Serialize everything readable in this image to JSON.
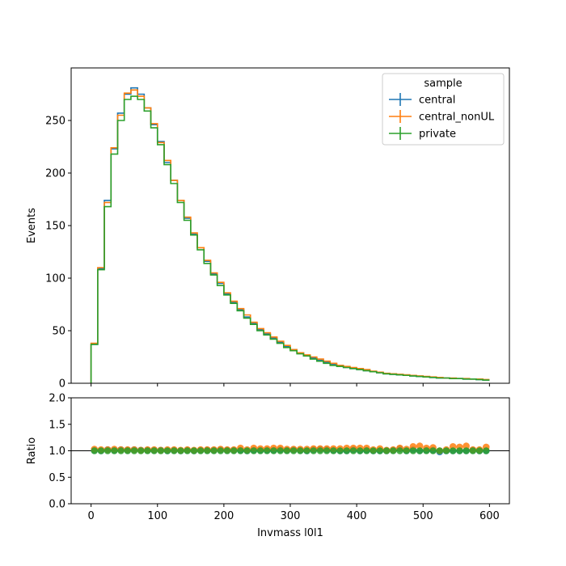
{
  "chart_data": {
    "type": "step-histogram-with-ratio",
    "legend": {
      "title": "sample",
      "placement": "top-right",
      "entries": [
        "central",
        "central_nonUL",
        "private"
      ]
    },
    "colors": {
      "central": "#1f77b4",
      "central_nonUL": "#ff7f0e",
      "private": "#2ca02c"
    },
    "main": {
      "ylabel": "Events",
      "ylim": [
        0,
        300
      ],
      "yticks": [
        0,
        50,
        100,
        150,
        200,
        250
      ],
      "bin_edges": [
        0,
        10,
        20,
        30,
        40,
        50,
        60,
        70,
        80,
        90,
        100,
        110,
        120,
        130,
        140,
        150,
        160,
        170,
        180,
        190,
        200,
        210,
        220,
        230,
        240,
        250,
        260,
        270,
        280,
        290,
        300,
        310,
        320,
        330,
        340,
        350,
        360,
        370,
        380,
        390,
        400,
        410,
        420,
        430,
        440,
        450,
        460,
        470,
        480,
        490,
        500,
        510,
        520,
        530,
        540,
        550,
        560,
        570,
        580,
        590,
        600
      ],
      "series": [
        {
          "name": "central",
          "values": [
            37,
            109,
            174,
            223,
            257,
            275,
            281,
            275,
            262,
            246,
            230,
            210,
            193,
            174,
            157,
            142,
            129,
            116,
            104,
            95,
            85,
            77,
            70,
            63,
            57,
            51,
            47,
            43,
            39,
            35,
            32,
            29,
            26,
            24,
            22,
            20,
            18,
            17,
            15,
            14,
            13,
            12,
            11,
            10,
            9,
            8.5,
            8,
            7.5,
            7,
            6.5,
            6,
            5.5,
            5,
            5,
            4.5,
            4.5,
            4,
            4,
            3.5,
            3
          ]
        },
        {
          "name": "central_nonUL",
          "values": [
            38,
            110,
            172,
            224,
            255,
            276,
            279,
            273,
            262,
            247,
            229,
            212,
            193,
            174,
            158,
            143,
            129,
            117,
            105,
            96,
            86,
            78,
            71,
            65,
            58,
            52,
            48,
            44,
            40,
            36,
            32,
            29,
            27,
            25,
            23,
            21,
            19,
            17,
            16,
            15,
            14,
            13,
            11.5,
            10.5,
            9.5,
            9,
            8.5,
            8,
            7.5,
            7,
            6.5,
            6,
            5.5,
            5,
            5,
            4.5,
            4.5,
            4,
            4,
            3.5
          ]
        },
        {
          "name": "private",
          "values": [
            37,
            108,
            168,
            218,
            250,
            270,
            273,
            270,
            259,
            243,
            227,
            208,
            190,
            172,
            155,
            141,
            127,
            114,
            103,
            93,
            84,
            76,
            69,
            62,
            56,
            50,
            46,
            42,
            38,
            34,
            31,
            28,
            26,
            23,
            21,
            19,
            17,
            16,
            15,
            14,
            13,
            12,
            11,
            10,
            9,
            8.5,
            8,
            7.5,
            7,
            6.5,
            6,
            5.5,
            5,
            5,
            4.5,
            4.5,
            4,
            4,
            3.5,
            3
          ]
        }
      ]
    },
    "ratio": {
      "ylabel": "Ratio",
      "ylim": [
        0.0,
        2.0
      ],
      "yticks": [
        "0.0",
        "0.5",
        "1.0",
        "1.5",
        "2.0"
      ],
      "reference_line": 1.0,
      "x": [
        5,
        15,
        25,
        35,
        45,
        55,
        65,
        75,
        85,
        95,
        105,
        115,
        125,
        135,
        145,
        155,
        165,
        175,
        185,
        195,
        205,
        215,
        225,
        235,
        245,
        255,
        265,
        275,
        285,
        295,
        305,
        315,
        325,
        335,
        345,
        355,
        365,
        375,
        385,
        395,
        405,
        415,
        425,
        435,
        445,
        455,
        465,
        475,
        485,
        495,
        505,
        515,
        525,
        535,
        545,
        555,
        565,
        575,
        585,
        595
      ],
      "series": [
        {
          "name": "central",
          "values": [
            1.01,
            1.0,
            1.02,
            1.01,
            1.02,
            1.01,
            1.02,
            1.01,
            1.01,
            1.01,
            1.01,
            1.0,
            1.01,
            1.0,
            1.01,
            1.0,
            1.01,
            1.01,
            1.01,
            1.02,
            1.01,
            1.01,
            1.01,
            1.0,
            1.01,
            1.01,
            1.01,
            1.01,
            1.02,
            1.01,
            1.02,
            1.01,
            1.0,
            1.02,
            1.03,
            1.02,
            1.01,
            1.0,
            1.0,
            1.02,
            1.0,
            1.01,
            1.0,
            1.0,
            1.0,
            1.01,
            1.04,
            1.0,
            1.02,
            1.0,
            1.01,
            1.01,
            0.98,
            1.0,
            1.0,
            1.0,
            1.0,
            1.01,
            1.0,
            1.0
          ]
        },
        {
          "name": "central_nonUL",
          "values": [
            1.03,
            1.02,
            1.02,
            1.03,
            1.02,
            1.02,
            1.02,
            1.01,
            1.02,
            1.02,
            1.01,
            1.02,
            1.02,
            1.01,
            1.02,
            1.01,
            1.02,
            1.02,
            1.02,
            1.03,
            1.02,
            1.02,
            1.05,
            1.02,
            1.05,
            1.04,
            1.04,
            1.05,
            1.05,
            1.03,
            1.03,
            1.03,
            1.03,
            1.04,
            1.04,
            1.04,
            1.04,
            1.04,
            1.05,
            1.05,
            1.05,
            1.05,
            1.02,
            1.04,
            1.01,
            1.02,
            1.05,
            1.03,
            1.08,
            1.09,
            1.05,
            1.06,
            1.0,
            1.02,
            1.08,
            1.07,
            1.09,
            1.02,
            1.02,
            1.07
          ]
        },
        {
          "name": "private",
          "values": [
            1.0,
            1.0,
            1.0,
            1.0,
            1.0,
            1.0,
            1.0,
            1.0,
            1.0,
            1.0,
            1.0,
            1.0,
            1.0,
            1.0,
            1.0,
            1.0,
            1.0,
            1.0,
            1.0,
            1.0,
            1.0,
            1.0,
            1.0,
            1.0,
            1.0,
            1.0,
            1.0,
            1.0,
            1.0,
            1.0,
            1.0,
            1.0,
            1.0,
            1.0,
            1.0,
            1.0,
            1.0,
            1.0,
            1.0,
            1.0,
            1.0,
            1.0,
            1.0,
            1.0,
            1.0,
            1.0,
            1.0,
            1.0,
            1.0,
            1.0,
            1.0,
            1.0,
            1.0,
            1.0,
            1.0,
            1.0,
            1.0,
            1.0,
            1.0,
            1.0
          ]
        }
      ]
    },
    "x_axis": {
      "xlabel": "Invmass l0l1",
      "xlim": [
        -30,
        630
      ],
      "ticks": [
        0,
        100,
        200,
        300,
        400,
        500,
        600
      ]
    }
  }
}
